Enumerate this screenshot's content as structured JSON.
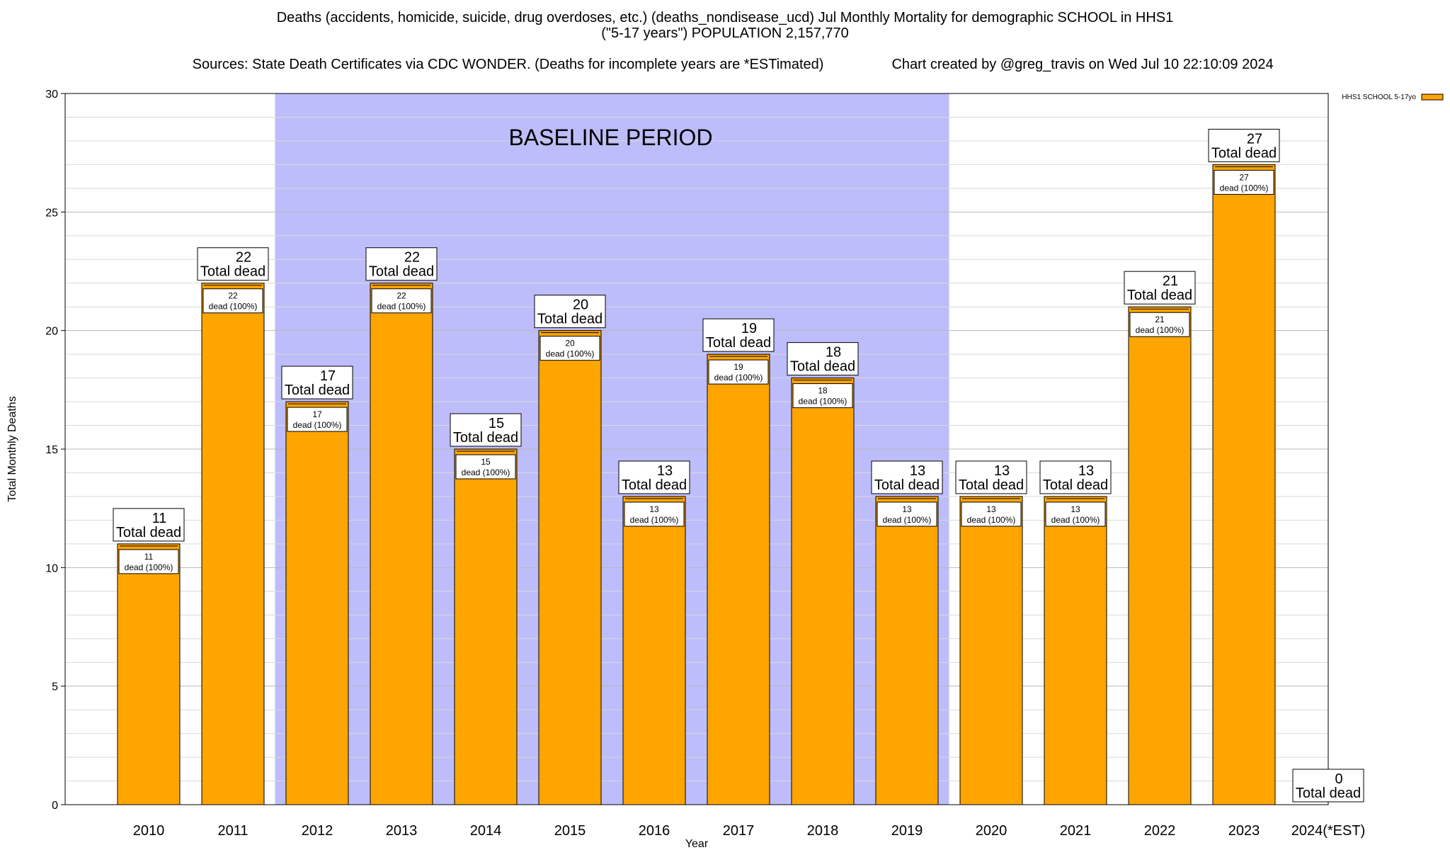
{
  "header": {
    "title_line1": "Deaths (accidents, homicide, suicide, drug overdoses, etc.) (deaths_nondisease_ucd) Jul Monthly Mortality for demographic SCHOOL in HHS1",
    "title_line2": "(\"5-17 years\") POPULATION 2,157,770",
    "sources": "Sources: State Death Certificates via CDC WONDER. (Deaths for incomplete years are *ESTimated)",
    "credit": "Chart created by @greg_travis on Wed Jul 10 22:10:09 2024"
  },
  "chart_data": {
    "type": "bar",
    "title": "Deaths (accidents, homicide, suicide, drug overdoses, etc.) (deaths_nondisease_ucd) Jul Monthly Mortality for demographic SCHOOL in HHS1",
    "xlabel": "Year",
    "ylabel": "Total Monthly Deaths",
    "ylim": [
      0,
      30
    ],
    "yticks": [
      "0",
      "5",
      "10",
      "15",
      "20",
      "25",
      "30"
    ],
    "categories": [
      "2010",
      "2011",
      "2012",
      "2013",
      "2014",
      "2015",
      "2016",
      "2017",
      "2018",
      "2019",
      "2020",
      "2021",
      "2022",
      "2023",
      "2024(*EST)"
    ],
    "series": [
      {
        "name": "HHS1 SCHOOL 5-17yo",
        "color": "#ffa500",
        "values": [
          11,
          22,
          17,
          22,
          15,
          20,
          13,
          19,
          18,
          13,
          13,
          13,
          21,
          27,
          0
        ]
      }
    ],
    "total_label_text": "Total dead",
    "inner_label_text": "dead (100%)",
    "baseline": {
      "label": "BASELINE PERIOD",
      "from_category": "2012",
      "to_category": "2019",
      "color": "#bdbdfc"
    },
    "legend": {
      "position": "top-right",
      "entries": [
        "HHS1 SCHOOL 5-17yo"
      ]
    },
    "grid": true
  }
}
